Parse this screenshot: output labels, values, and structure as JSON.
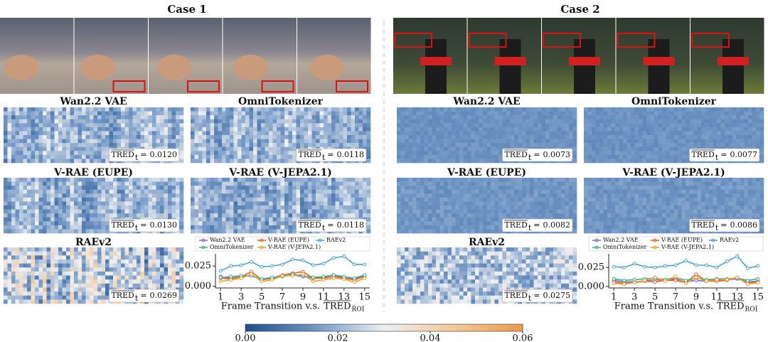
{
  "colormap": [
    "#1f4e8c",
    "#6f95c4",
    "#eef0f2",
    "#f4c89a",
    "#eb9c4c"
  ],
  "colorbar": {
    "lim": [
      0,
      0.06
    ],
    "ticks": [
      {
        "value": 0,
        "label": "0.00"
      },
      {
        "value": 0.02,
        "label": "0.02"
      },
      {
        "value": 0.04,
        "label": "0.04"
      },
      {
        "value": 0.06,
        "label": "0.06"
      }
    ]
  },
  "cases": [
    {
      "title": "Case 1",
      "panels": [
        {
          "title": "Wan2.2 VAE",
          "metric": "TRED",
          "subscript": "t",
          "operator": "=",
          "value": "0.0120"
        },
        {
          "title": "OmniTokenizer",
          "metric": "TRED",
          "subscript": "t",
          "operator": "=",
          "value": "0.0118"
        },
        {
          "title": "V-RAE (EUPE)",
          "metric": "TRED",
          "subscript": "t",
          "operator": "=",
          "value": "0.0130"
        },
        {
          "title": "V-RAE (V-JEPA2.1)",
          "metric": "TRED",
          "subscript": "t",
          "operator": "=",
          "value": "0.0118"
        },
        {
          "title": "RAEv2",
          "metric": "TRED",
          "subscript": "t",
          "operator": "=",
          "value": "0.0269"
        }
      ]
    },
    {
      "title": "Case 2",
      "panels": [
        {
          "title": "Wan2.2 VAE",
          "metric": "TRED",
          "subscript": "t",
          "operator": "=",
          "value": "0.0073"
        },
        {
          "title": "OmniTokenizer",
          "metric": "TRED",
          "subscript": "t",
          "operator": "=",
          "value": "0.0077"
        },
        {
          "title": "V-RAE (EUPE)",
          "metric": "TRED",
          "subscript": "t",
          "operator": "=",
          "value": "0.0082"
        },
        {
          "title": "V-RAE (V-JEPA2.1)",
          "metric": "TRED",
          "subscript": "t",
          "operator": "=",
          "value": "0.0086"
        },
        {
          "title": "RAEv2",
          "metric": "TRED",
          "subscript": "t",
          "operator": "=",
          "value": "0.0275"
        }
      ]
    }
  ],
  "chart_data": [
    {
      "type": "line",
      "xlabel": "Frame Transition v.s.",
      "xlabel_metric": "TRED",
      "xlabel_subscript": "ROI",
      "x": [
        1,
        2,
        3,
        4,
        5,
        6,
        7,
        8,
        9,
        10,
        11,
        12,
        13,
        14,
        15
      ],
      "xlim": [
        0.5,
        15.5
      ],
      "xticks": [
        1,
        3,
        5,
        7,
        9,
        11,
        13,
        15
      ],
      "ylim": [
        -0.002,
        0.04
      ],
      "yticks": [
        {
          "value": 0,
          "label": "0.000"
        },
        {
          "value": 0.025,
          "label": "0.025"
        }
      ],
      "series": [
        {
          "name": "Wan2.2 VAE",
          "color": "#7b6fd0",
          "values": [
            0.012,
            0.01,
            0.012,
            0.013,
            0.008,
            0.01,
            0.012,
            0.014,
            0.012,
            0.01,
            0.011,
            0.014,
            0.01,
            0.009,
            0.013
          ]
        },
        {
          "name": "V-RAE (EUPE)",
          "color": "#e8622c",
          "values": [
            0.01,
            0.009,
            0.012,
            0.018,
            0.008,
            0.01,
            0.014,
            0.016,
            0.018,
            0.01,
            0.01,
            0.012,
            0.01,
            0.008,
            0.012
          ]
        },
        {
          "name": "RAEv2",
          "color": "#4aa3d8",
          "values": [
            0.019,
            0.025,
            0.026,
            0.03,
            0.024,
            0.025,
            0.027,
            0.033,
            0.032,
            0.026,
            0.028,
            0.035,
            0.037,
            0.027,
            0.027
          ]
        },
        {
          "name": "OmniTokenizer",
          "color": "#3bb08f",
          "values": [
            0.011,
            0.012,
            0.013,
            0.013,
            0.009,
            0.011,
            0.012,
            0.015,
            0.013,
            0.011,
            0.012,
            0.014,
            0.012,
            0.01,
            0.014
          ]
        },
        {
          "name": "V-RAE (V-JEPA2.1)",
          "color": "#f0a030",
          "values": [
            0.006,
            0.008,
            0.01,
            0.015,
            0.006,
            0.008,
            0.013,
            0.013,
            0.015,
            0.006,
            0.008,
            0.01,
            0.009,
            0.005,
            0.01
          ]
        }
      ]
    },
    {
      "type": "line",
      "xlabel": "Frame Transition v.s.",
      "xlabel_metric": "TRED",
      "xlabel_subscript": "ROI",
      "x": [
        1,
        2,
        3,
        4,
        5,
        6,
        7,
        8,
        9,
        10,
        11,
        12,
        13,
        14,
        15
      ],
      "xlim": [
        0.5,
        15.5
      ],
      "xticks": [
        1,
        3,
        5,
        7,
        9,
        11,
        13,
        15
      ],
      "ylim": [
        -0.002,
        0.043
      ],
      "yticks": [
        {
          "value": 0,
          "label": "0.000"
        },
        {
          "value": 0.025,
          "label": "0.025"
        }
      ],
      "series": [
        {
          "name": "Wan2.2 VAE",
          "color": "#7b6fd0",
          "values": [
            0.008,
            0.006,
            0.006,
            0.007,
            0.009,
            0.008,
            0.01,
            0.006,
            0.008,
            0.007,
            0.008,
            0.009,
            0.01,
            0.006,
            0.007
          ]
        },
        {
          "name": "V-RAE (EUPE)",
          "color": "#e8622c",
          "values": [
            0.006,
            0.004,
            0.005,
            0.007,
            0.006,
            0.008,
            0.008,
            0.005,
            0.016,
            0.007,
            0.007,
            0.008,
            0.012,
            0.005,
            0.006
          ]
        },
        {
          "name": "RAEv2",
          "color": "#4aa3d8",
          "values": [
            0.026,
            0.025,
            0.03,
            0.026,
            0.025,
            0.027,
            0.028,
            0.034,
            0.028,
            0.028,
            0.025,
            0.033,
            0.04,
            0.024,
            0.027
          ]
        },
        {
          "name": "OmniTokenizer",
          "color": "#3bb08f",
          "values": [
            0.01,
            0.008,
            0.009,
            0.01,
            0.011,
            0.009,
            0.012,
            0.008,
            0.011,
            0.009,
            0.01,
            0.01,
            0.011,
            0.008,
            0.01
          ]
        },
        {
          "name": "V-RAE (V-JEPA2.1)",
          "color": "#f0a030",
          "values": [
            0.004,
            0.003,
            0.005,
            0.008,
            0.012,
            0.007,
            0.013,
            0.004,
            0.012,
            0.007,
            0.009,
            0.009,
            0.012,
            0.003,
            0.005
          ]
        }
      ]
    }
  ]
}
